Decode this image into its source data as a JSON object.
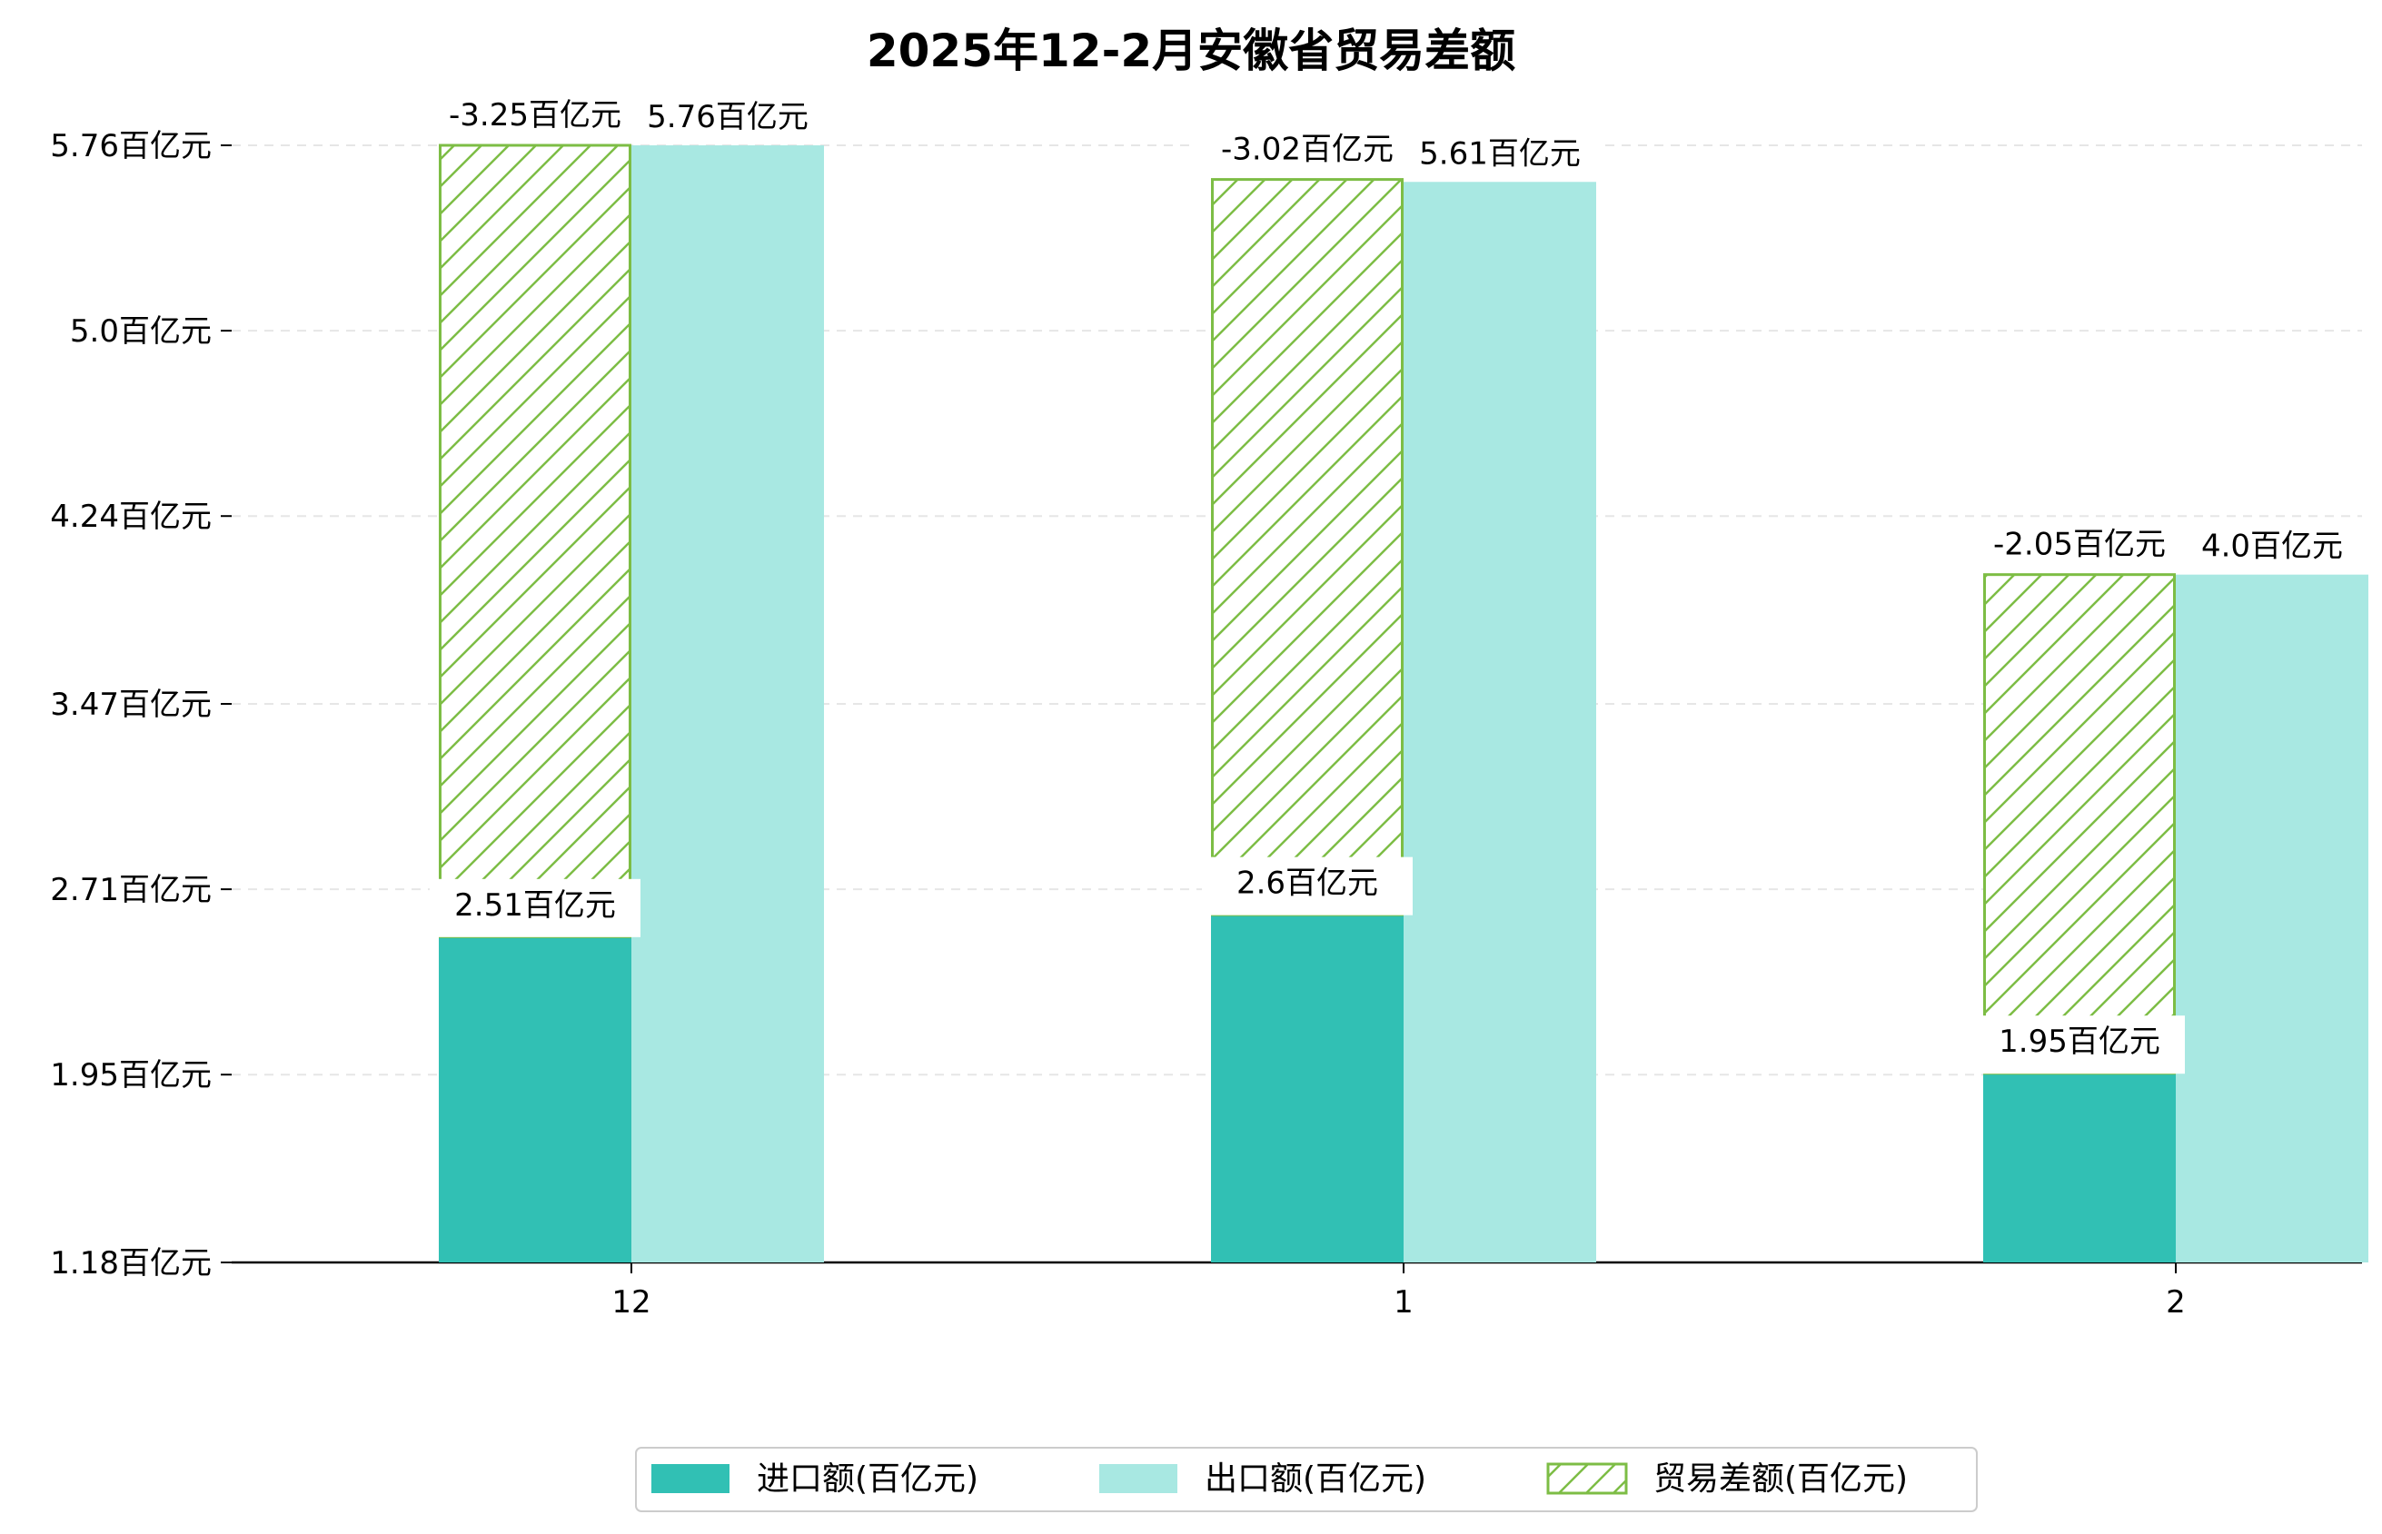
{
  "chart_data": {
    "type": "bar",
    "title": "2025年12-2月安徽省贸易差额",
    "categories": [
      "12",
      "1",
      "2"
    ],
    "series": [
      {
        "name": "进口额(百亿元)",
        "values": [
          2.51,
          2.6,
          1.95
        ],
        "labels": [
          "2.51百亿元",
          "2.6百亿元",
          "1.95百亿元"
        ],
        "color": "#31c0b4"
      },
      {
        "name": "出口额(百亿元)",
        "values": [
          5.76,
          5.61,
          4.0
        ],
        "labels": [
          "5.76百亿元",
          "5.61百亿元",
          "4.0百亿元"
        ],
        "color": "#a8e8e2"
      },
      {
        "name": "贸易差额(百亿元)",
        "values": [
          -3.25,
          -3.02,
          -2.05
        ],
        "labels": [
          "-3.25百亿元",
          "-3.02百亿元",
          "-2.05百亿元"
        ],
        "color": "#7dbd45",
        "pattern": "hatch"
      }
    ],
    "yticks": [
      1.18,
      1.95,
      2.71,
      3.47,
      4.24,
      5.0,
      5.76
    ],
    "ytick_labels": [
      "1.18百亿元",
      "1.95百亿元",
      "2.71百亿元",
      "3.47百亿元",
      "4.24百亿元",
      "5.0百亿元",
      "5.76百亿元"
    ],
    "ylim": [
      1.18,
      5.76
    ],
    "grid": "y-dashed",
    "legend_position": "bottom-center",
    "xlabel": "",
    "ylabel": ""
  }
}
